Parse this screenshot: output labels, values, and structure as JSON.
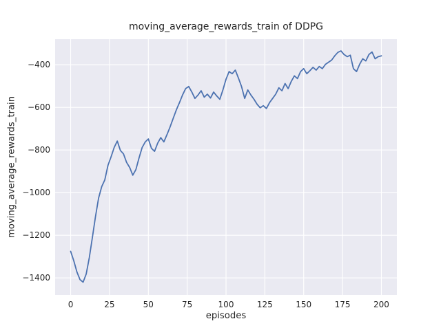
{
  "chart_data": {
    "type": "line",
    "title": "moving_average_rewards_train of DDPG",
    "xlabel": "episodes",
    "ylabel": "moving_average_rewards_train",
    "xlim": [
      -10,
      210
    ],
    "ylim": [
      -1480,
      -280
    ],
    "grid": true,
    "legend": "none",
    "xticks": {
      "values": [
        0,
        25,
        50,
        75,
        100,
        125,
        150,
        175,
        200
      ],
      "labels": [
        "0",
        "25",
        "50",
        "75",
        "100",
        "125",
        "150",
        "175",
        "200"
      ]
    },
    "yticks": {
      "values": [
        -1400,
        -1200,
        -1000,
        -800,
        -600,
        -400
      ],
      "labels": [
        "−1400",
        "−1200",
        "−1000",
        "−800",
        "−600",
        "−400"
      ]
    },
    "colors": {
      "line": "#4c72b0",
      "plot_bg": "#eaeaf2",
      "grid": "#ffffff",
      "text": "#262626",
      "figure_bg": "#ffffff"
    },
    "series": [
      {
        "name": "moving_average_rewards_train",
        "x": [
          0,
          2,
          4,
          6,
          8,
          10,
          12,
          14,
          16,
          18,
          20,
          22,
          24,
          26,
          28,
          30,
          32,
          34,
          36,
          38,
          40,
          42,
          44,
          46,
          48,
          50,
          52,
          54,
          56,
          58,
          60,
          62,
          64,
          66,
          68,
          70,
          72,
          74,
          76,
          78,
          80,
          82,
          84,
          86,
          88,
          90,
          92,
          94,
          96,
          98,
          100,
          102,
          104,
          106,
          108,
          110,
          112,
          114,
          116,
          118,
          120,
          122,
          124,
          126,
          128,
          130,
          132,
          134,
          136,
          138,
          140,
          142,
          144,
          146,
          148,
          150,
          152,
          154,
          156,
          158,
          160,
          162,
          164,
          166,
          168,
          170,
          172,
          174,
          176,
          178,
          180,
          182,
          184,
          186,
          188,
          190,
          192,
          194,
          196,
          198,
          200
        ],
        "y": [
          -1275,
          -1320,
          -1372,
          -1408,
          -1420,
          -1382,
          -1305,
          -1210,
          -1112,
          -1025,
          -972,
          -940,
          -872,
          -832,
          -788,
          -758,
          -802,
          -818,
          -858,
          -882,
          -918,
          -892,
          -838,
          -788,
          -762,
          -748,
          -792,
          -806,
          -768,
          -742,
          -762,
          -728,
          -692,
          -652,
          -612,
          -578,
          -542,
          -512,
          -502,
          -528,
          -558,
          -542,
          -522,
          -552,
          -538,
          -556,
          -528,
          -546,
          -562,
          -518,
          -468,
          -432,
          -442,
          -425,
          -462,
          -502,
          -558,
          -518,
          -542,
          -562,
          -585,
          -602,
          -592,
          -605,
          -578,
          -558,
          -538,
          -508,
          -522,
          -488,
          -512,
          -478,
          -452,
          -465,
          -432,
          -418,
          -442,
          -428,
          -412,
          -425,
          -408,
          -418,
          -398,
          -388,
          -378,
          -358,
          -342,
          -335,
          -352,
          -362,
          -355,
          -418,
          -432,
          -398,
          -372,
          -382,
          -352,
          -340,
          -372,
          -362,
          -358
        ]
      }
    ]
  }
}
